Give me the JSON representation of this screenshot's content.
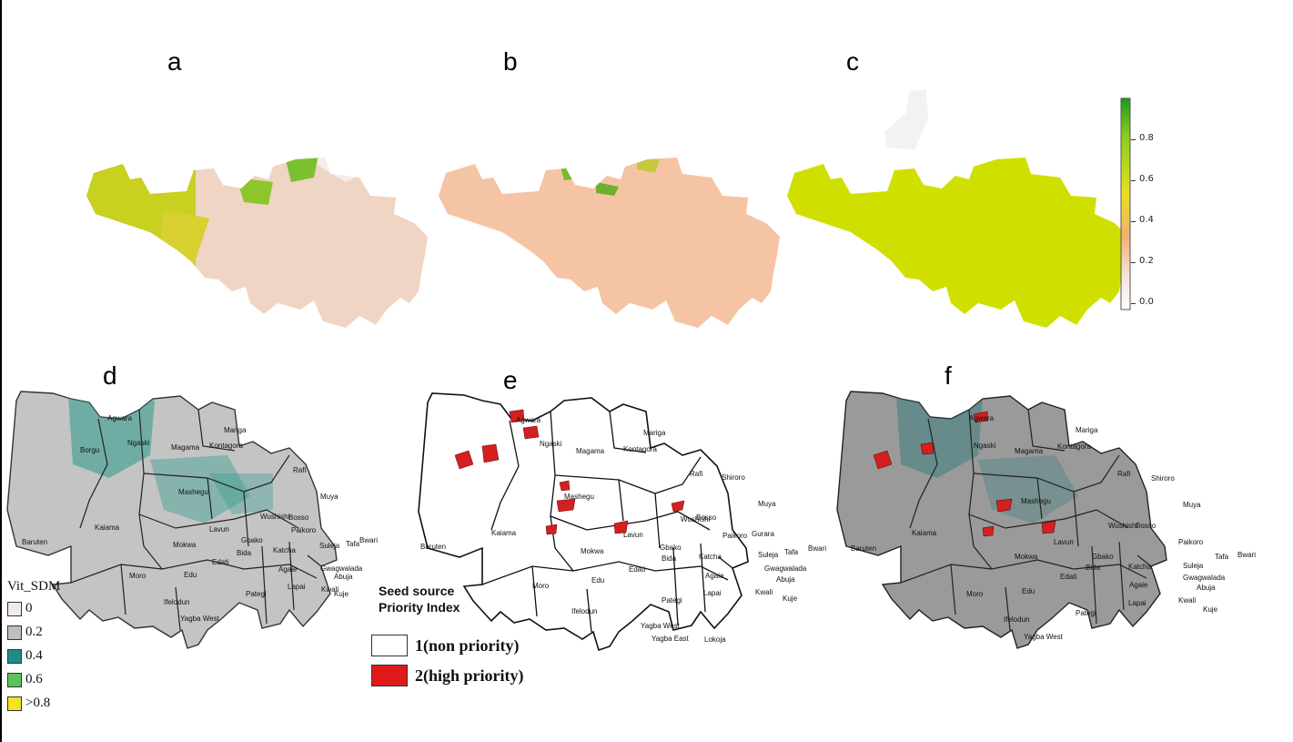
{
  "panels": {
    "a": "a",
    "b": "b",
    "c": "c",
    "d": "d",
    "e": "e",
    "f": "f"
  },
  "colorbar": {
    "ticks": [
      "0.8",
      "0.6",
      "0.4",
      "0.2",
      "0.0"
    ],
    "colors": [
      "#1a9a1a",
      "#8ccc20",
      "#e6e020",
      "#f0b070",
      "#f7e4de",
      "#ffffff"
    ]
  },
  "vit_legend": {
    "title": "Vit_SDM",
    "items": [
      {
        "label": "0",
        "color": "#f3e8ef"
      },
      {
        "label": "0.2",
        "color": "#bebebe"
      },
      {
        "label": "0.4",
        "color": "#1f8c8c"
      },
      {
        "label": "0.6",
        "color": "#5cc45c"
      },
      {
        "label": ">0.8",
        "color": "#f4e420"
      }
    ]
  },
  "seed_legend": {
    "title_line1": "Seed source",
    "title_line2": "Priority Index",
    "items": [
      {
        "label": "1(non priority)",
        "color": "#ffffff"
      },
      {
        "label": "2(high priority)",
        "color": "#e01a1a"
      }
    ]
  },
  "lgas": [
    {
      "name": "Agwara"
    },
    {
      "name": "Borgu"
    },
    {
      "name": "Ngaski"
    },
    {
      "name": "Magama"
    },
    {
      "name": "Mariga"
    },
    {
      "name": "Kontagora"
    },
    {
      "name": "Rafi"
    },
    {
      "name": "Shiroro"
    },
    {
      "name": "Mashegu"
    },
    {
      "name": "Muya"
    },
    {
      "name": "Wushishi"
    },
    {
      "name": "Bosso"
    },
    {
      "name": "Paikoro"
    },
    {
      "name": "Kaiama"
    },
    {
      "name": "Lavun"
    },
    {
      "name": "Mokwa"
    },
    {
      "name": "Gbako"
    },
    {
      "name": "Bida"
    },
    {
      "name": "Edati"
    },
    {
      "name": "Katcha"
    },
    {
      "name": "Agaie"
    },
    {
      "name": "Lapai"
    },
    {
      "name": "Suleja"
    },
    {
      "name": "Tafa"
    },
    {
      "name": "Bwari"
    },
    {
      "name": "Gwagwalada"
    },
    {
      "name": "Abuja"
    },
    {
      "name": "Kwali"
    },
    {
      "name": "Kuje"
    },
    {
      "name": "Moro"
    },
    {
      "name": "Edu"
    },
    {
      "name": "Ifelodun"
    },
    {
      "name": "Pategi"
    },
    {
      "name": "Yagba West"
    },
    {
      "name": "Yagba East"
    },
    {
      "name": "Lokoja"
    },
    {
      "name": "Baruten"
    },
    {
      "name": "Gurara"
    }
  ]
}
